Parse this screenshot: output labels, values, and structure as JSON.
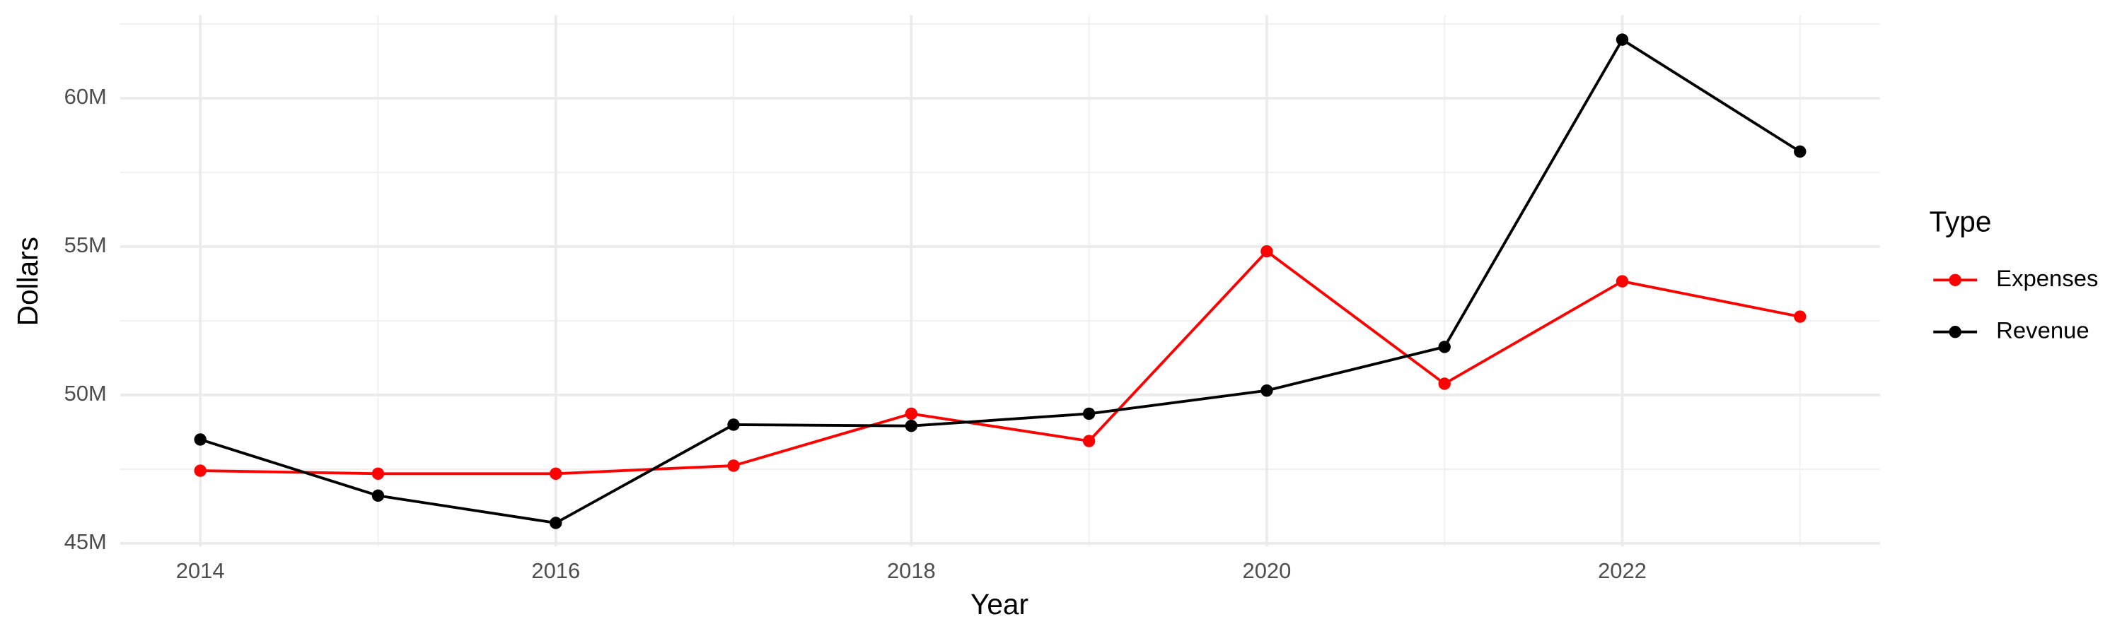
{
  "chart_data": {
    "type": "line",
    "x_label": "Year",
    "y_label": "Dollars",
    "legend_title": "Type",
    "legend_position": "right",
    "grid": true,
    "x": [
      2014,
      2015,
      2016,
      2017,
      2018,
      2019,
      2020,
      2021,
      2022,
      2023
    ],
    "xlim": [
      2013.55,
      2023.45
    ],
    "xticks": [
      2014,
      2016,
      2018,
      2020,
      2022
    ],
    "ylim": [
      44900000,
      62800000
    ],
    "yticks": [
      {
        "value": 45000000,
        "label": "45M"
      },
      {
        "value": 50000000,
        "label": "50M"
      },
      {
        "value": 55000000,
        "label": "55M"
      },
      {
        "value": 60000000,
        "label": "60M"
      }
    ],
    "series": [
      {
        "name": "Expenses",
        "color": "#ff0000",
        "values": [
          47450000,
          47350000,
          47350000,
          47620000,
          49370000,
          48450000,
          54840000,
          50380000,
          53830000,
          52640000
        ]
      },
      {
        "name": "Revenue",
        "color": "#000000",
        "values": [
          48500000,
          46610000,
          45690000,
          49000000,
          48960000,
          49370000,
          50150000,
          51620000,
          61970000,
          58200000
        ]
      }
    ]
  }
}
